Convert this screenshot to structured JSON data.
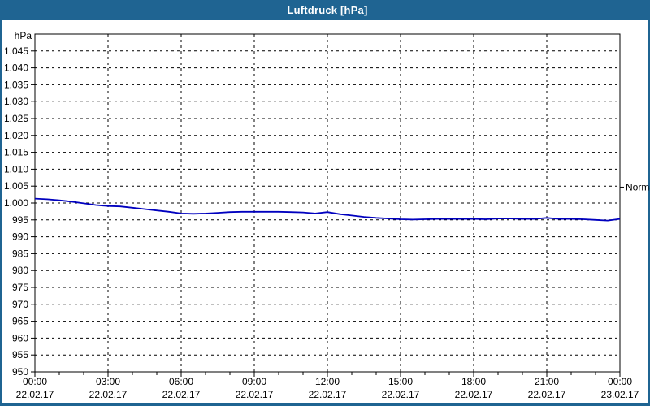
{
  "window": {
    "title": "Luftdruck [hPa]"
  },
  "colors": {
    "titlebar": "#1F6492",
    "frame": "#1F6492",
    "background": "#ffffff",
    "axis": "#000000",
    "grid": "#000000",
    "text": "#000000",
    "series_line": "#0000BF"
  },
  "chart_data": {
    "type": "line",
    "title": "Luftdruck [hPa]",
    "unit_label": "hPa",
    "ylim": [
      950,
      1050
    ],
    "grid": "dashed",
    "y_ticks": [
      {
        "value": 950,
        "label": "950"
      },
      {
        "value": 955,
        "label": "955"
      },
      {
        "value": 960,
        "label": "960"
      },
      {
        "value": 965,
        "label": "965"
      },
      {
        "value": 970,
        "label": "970"
      },
      {
        "value": 975,
        "label": "975"
      },
      {
        "value": 980,
        "label": "980"
      },
      {
        "value": 985,
        "label": "985"
      },
      {
        "value": 990,
        "label": "990"
      },
      {
        "value": 995,
        "label": "995"
      },
      {
        "value": 1000,
        "label": "1.000"
      },
      {
        "value": 1005,
        "label": "1.005"
      },
      {
        "value": 1010,
        "label": "1.010"
      },
      {
        "value": 1015,
        "label": "1.015"
      },
      {
        "value": 1020,
        "label": "1.020"
      },
      {
        "value": 1025,
        "label": "1.025"
      },
      {
        "value": 1030,
        "label": "1.030"
      },
      {
        "value": 1035,
        "label": "1.035"
      },
      {
        "value": 1040,
        "label": "1.040"
      },
      {
        "value": 1045,
        "label": "1.045"
      }
    ],
    "x_range_hours": [
      0,
      24
    ],
    "x_minor_tick_every_hours": 1,
    "x_major_ticks": [
      {
        "hour": 0,
        "time": "00:00",
        "date": "22.02.17"
      },
      {
        "hour": 3,
        "time": "03:00",
        "date": "22.02.17"
      },
      {
        "hour": 6,
        "time": "06:00",
        "date": "22.02.17"
      },
      {
        "hour": 9,
        "time": "09:00",
        "date": "22.02.17"
      },
      {
        "hour": 12,
        "time": "12:00",
        "date": "22.02.17"
      },
      {
        "hour": 15,
        "time": "15:00",
        "date": "22.02.17"
      },
      {
        "hour": 18,
        "time": "18:00",
        "date": "22.02.17"
      },
      {
        "hour": 21,
        "time": "21:00",
        "date": "22.02.17"
      },
      {
        "hour": 24,
        "time": "00:00",
        "date": "23.02.17"
      }
    ],
    "annotations": [
      {
        "label": "Normal",
        "value": 1004.7
      }
    ],
    "series": [
      {
        "name": "Luftdruck",
        "color": "#0000BF",
        "x_hours": [
          0,
          0.5,
          1,
          1.5,
          2,
          2.5,
          3,
          3.5,
          4,
          4.5,
          5,
          5.5,
          6,
          6.5,
          7,
          7.5,
          8,
          8.5,
          9,
          9.5,
          10,
          10.5,
          11,
          11.5,
          12,
          12.5,
          13,
          13.5,
          14,
          14.5,
          15,
          15.5,
          16,
          16.5,
          17,
          17.5,
          18,
          18.5,
          19,
          19.5,
          20,
          20.5,
          21,
          21.5,
          22,
          22.5,
          23,
          23.5,
          24
        ],
        "values": [
          1001.3,
          1001.1,
          1000.8,
          1000.4,
          999.9,
          999.4,
          999.1,
          999.0,
          998.6,
          998.2,
          997.8,
          997.4,
          996.9,
          996.8,
          996.9,
          997.1,
          997.3,
          997.4,
          997.4,
          997.4,
          997.4,
          997.3,
          997.2,
          996.9,
          997.3,
          996.7,
          996.3,
          995.9,
          995.6,
          995.4,
          995.2,
          995.1,
          995.2,
          995.3,
          995.3,
          995.3,
          995.3,
          995.2,
          995.4,
          995.4,
          995.3,
          995.3,
          995.6,
          995.3,
          995.3,
          995.2,
          995.0,
          994.8,
          995.3
        ]
      }
    ]
  }
}
